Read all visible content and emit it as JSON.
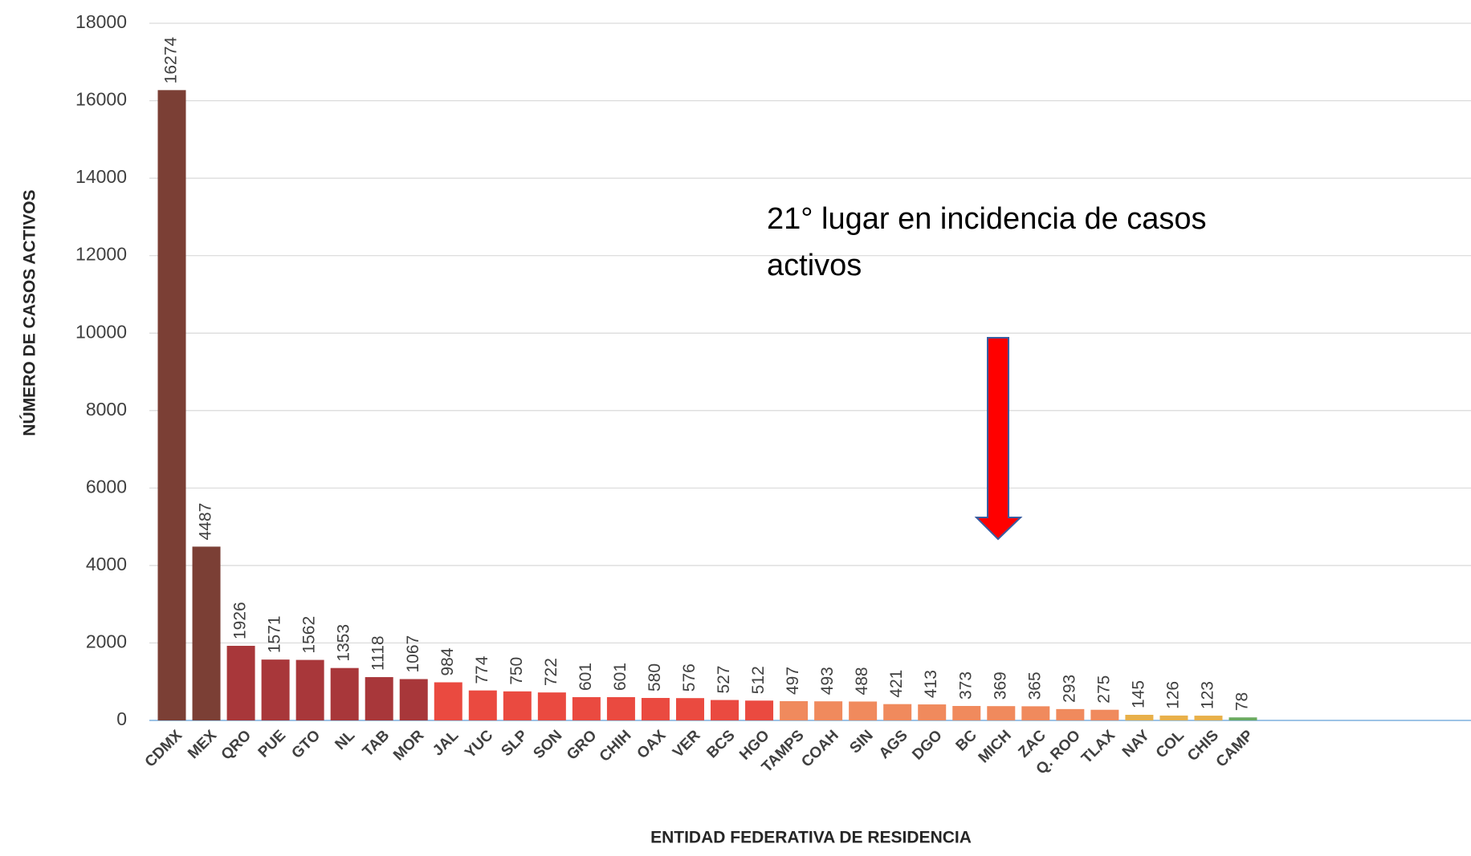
{
  "chart_data": {
    "type": "bar",
    "x_label": "ENTIDAD FEDERATIVA DE RESIDENCIA",
    "y_label": "NÚMERO DE CASOS ACTIVOS",
    "annotation": "21° lugar en incidencia de casos activos",
    "categories": [
      "CDMX",
      "MEX",
      "QRO",
      "PUE",
      "GTO",
      "NL",
      "TAB",
      "MOR",
      "JAL",
      "YUC",
      "SLP",
      "SON",
      "GRO",
      "CHIH",
      "OAX",
      "VER",
      "BCS",
      "HGO",
      "TAMPS",
      "COAH",
      "SIN",
      "AGS",
      "DGO",
      "BC",
      "MICH",
      "ZAC",
      "Q. ROO",
      "TLAX",
      "NAY",
      "COL",
      "CHIS",
      "CAMP"
    ],
    "values": [
      16274,
      4487,
      1926,
      1571,
      1562,
      1353,
      1118,
      1067,
      984,
      774,
      750,
      722,
      601,
      601,
      580,
      576,
      527,
      512,
      497,
      493,
      488,
      421,
      413,
      373,
      369,
      365,
      293,
      275,
      145,
      126,
      123,
      78
    ],
    "colors": [
      "#7b3f35",
      "#7b3f35",
      "#a8373a",
      "#a8373a",
      "#a8373a",
      "#a8373a",
      "#a8373a",
      "#a8373a",
      "#ea4a40",
      "#ea4a40",
      "#ea4a40",
      "#ea4a40",
      "#ea4a40",
      "#ea4a40",
      "#ea4a40",
      "#ea4a40",
      "#ea4a40",
      "#ea4a40",
      "#f08a5d",
      "#f08a5d",
      "#f08a5d",
      "#f08a5d",
      "#f08a5d",
      "#f08a5d",
      "#f08a5d",
      "#f08a5d",
      "#f08a5d",
      "#f08a5d",
      "#e8b04a",
      "#e8b04a",
      "#e8b04a",
      "#6aaa60"
    ],
    "ylim": [
      0,
      18000
    ],
    "yticks": [
      0,
      2000,
      4000,
      6000,
      8000,
      10000,
      12000,
      14000,
      16000,
      18000
    ],
    "grid": true
  }
}
